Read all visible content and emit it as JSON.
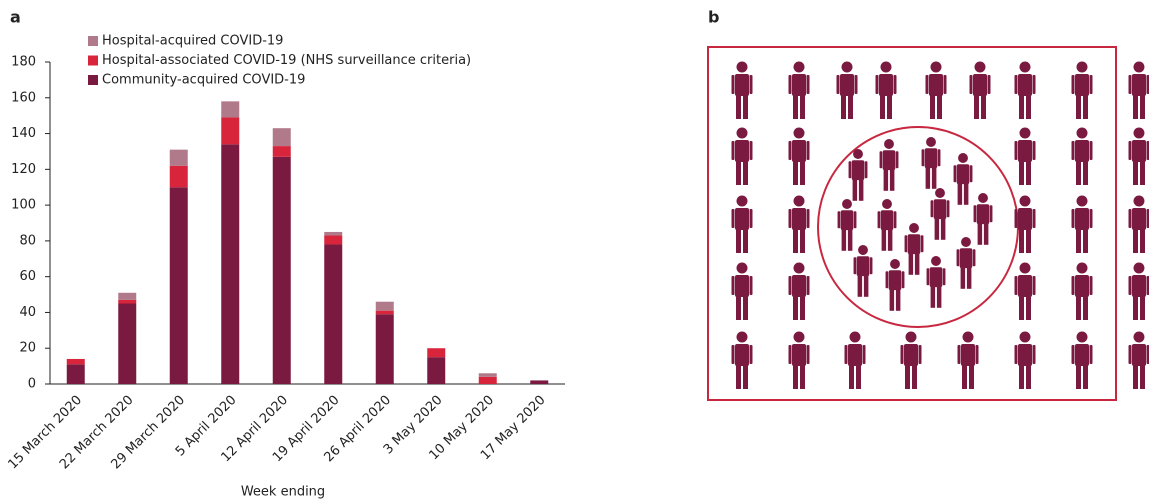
{
  "chart_data": {
    "type": "bar",
    "panel_label": "a",
    "x_label": "Week ending",
    "categories": [
      "15 March 2020",
      "22 March 2020",
      "29 March 2020",
      "5 April 2020",
      "12 April 2020",
      "19 April 2020",
      "26 April 2020",
      "3 May 2020",
      "10 May 2020",
      "17 May 2020"
    ],
    "series": [
      {
        "name": "Hospital-acquired COVID-19",
        "color": "#b07a8a",
        "values": [
          0,
          4,
          9,
          9,
          10,
          2,
          5,
          0,
          2,
          0
        ]
      },
      {
        "name": "Hospital-associated COVID-19 (NHS surveillance criteria)",
        "color": "#d9253b",
        "values": [
          3,
          2,
          12,
          15,
          6,
          5,
          2,
          5,
          4,
          0
        ]
      },
      {
        "name": "Community-acquired COVID-19",
        "color": "#7a1a40",
        "values": [
          11,
          45,
          110,
          134,
          127,
          78,
          39,
          15,
          0,
          2
        ]
      }
    ],
    "stacked": true,
    "ylim": [
      0,
      180
    ],
    "yticks": [
      0,
      20,
      40,
      60,
      80,
      100,
      120,
      140,
      160,
      180
    ],
    "grid": false
  },
  "diagram": {
    "panel_label": "b"
  }
}
